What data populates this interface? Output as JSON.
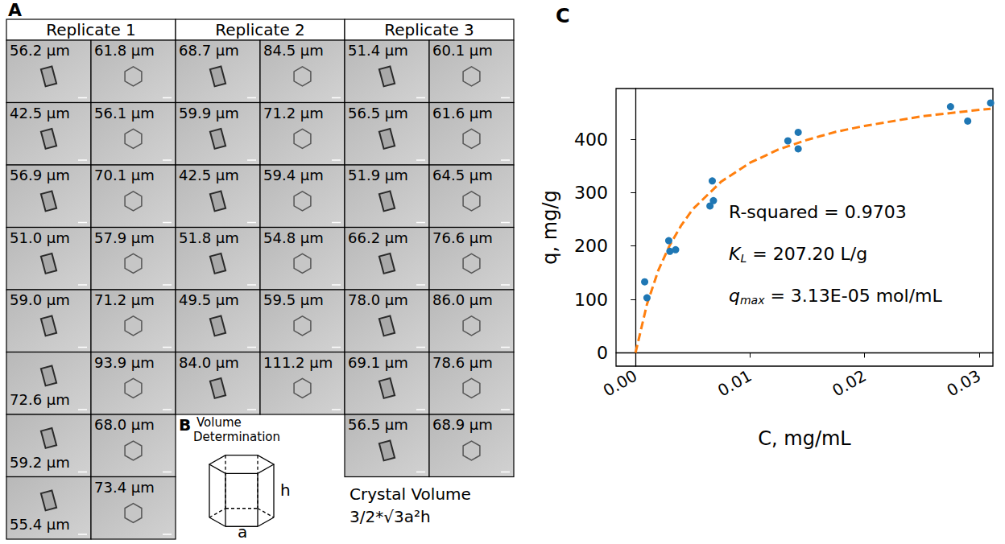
{
  "panel_a": {
    "letter": "A",
    "replicates": [
      {
        "title": "Replicate 1",
        "columns": [
          [
            "56.2 μm",
            "42.5 μm",
            "56.9 μm",
            "51.0 μm",
            "59.0 μm",
            "72.6 μm",
            "59.2 μm",
            "55.4 μm"
          ],
          [
            "61.8 μm",
            "56.1 μm",
            "70.1 μm",
            "57.9 μm",
            "71.2 μm",
            "93.9 μm",
            "68.0 μm",
            "73.4 μm"
          ]
        ]
      },
      {
        "title": "Replicate 2",
        "columns": [
          [
            "68.7 μm",
            "59.9 μm",
            "42.5 μm",
            "51.8 μm",
            "49.5 μm",
            "84.0 μm"
          ],
          [
            "84.5 μm",
            "71.2 μm",
            "59.4 μm",
            "54.8 μm",
            "59.5 μm",
            "111.2 μm"
          ]
        ]
      },
      {
        "title": "Replicate 3",
        "columns": [
          [
            "51.4 μm",
            "56.5 μm",
            "51.9 μm",
            "66.2 μm",
            "78.0 μm",
            "69.1 μm",
            "56.5 μm"
          ],
          [
            "60.1 μm",
            "61.6 μm",
            "64.5 μm",
            "76.6 μm",
            "86.0 μm",
            "78.6 μm",
            "68.9 μm"
          ]
        ]
      }
    ]
  },
  "panel_b": {
    "letter": "B",
    "title": "Volume Determination",
    "height_label": "h",
    "side_label": "a",
    "caption": [
      "Crystal Volume",
      "3/2*√3a²h"
    ]
  },
  "panel_c": {
    "letter": "C"
  },
  "chart_data": {
    "type": "scatter",
    "x_label": "C, mg/mL",
    "y_label": "q, mg/g",
    "xlim": [
      -0.0017,
      0.0312
    ],
    "ylim": [
      -25,
      495
    ],
    "xticks": [
      {
        "value": 0,
        "label": "0.00"
      },
      {
        "value": 0.01,
        "label": "0.01"
      },
      {
        "value": 0.02,
        "label": "0.02"
      },
      {
        "value": 0.03,
        "label": "0.03"
      }
    ],
    "yticks": [
      0,
      100,
      200,
      300,
      400
    ],
    "grid": false,
    "annotations": [
      {
        "main": "R-squared = 0.9703"
      },
      {
        "main": "K",
        "sub": "L",
        "rest": " = 207.20 L/g"
      },
      {
        "main": "q",
        "sub": "max",
        "rest": " = 3.13E-05 mol/mL"
      }
    ],
    "series": [
      {
        "type": "scatter",
        "color": "#1f77b4",
        "marker": "circle",
        "x": [
          0.0008,
          0.001,
          0.0029,
          0.003,
          0.0035,
          0.0065,
          0.0067,
          0.0068,
          0.0133,
          0.0142,
          0.0142,
          0.0275,
          0.029,
          0.031
        ],
        "values": [
          133,
          103,
          210,
          190,
          193,
          275,
          322,
          285,
          397,
          413,
          382,
          461,
          434,
          468
        ]
      },
      {
        "type": "line",
        "color": "#ff7f0e",
        "line_style": "dashed",
        "x": [
          0,
          0.001,
          0.002,
          0.003,
          0.004,
          0.005,
          0.0075,
          0.01,
          0.0125,
          0.015,
          0.0175,
          0.02,
          0.025,
          0.03,
          0.031
        ],
        "values": [
          0,
          91,
          155,
          202,
          239,
          269,
          321,
          356,
          381,
          399,
          414,
          425,
          443,
          455,
          457
        ]
      }
    ]
  }
}
